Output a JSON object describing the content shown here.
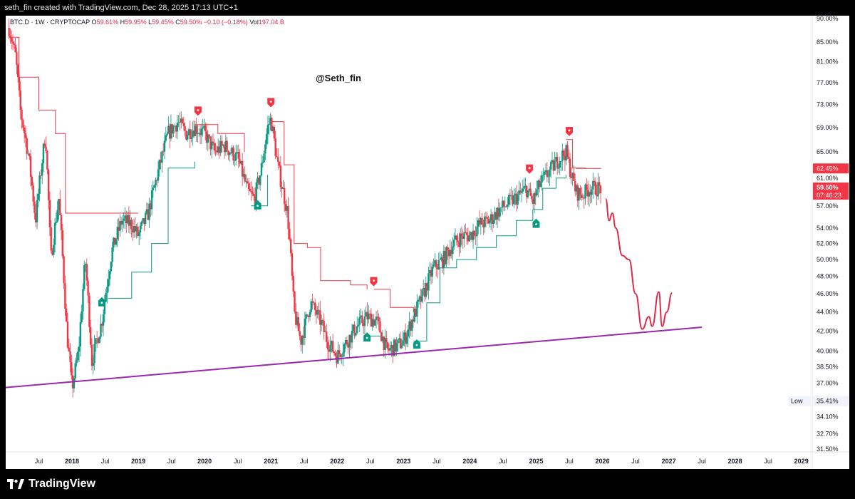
{
  "header": {
    "credit": "seth_fin created with TradingView.com, Dec 28, 2025 17:13 UTC+1"
  },
  "legend": {
    "symbol": "BTC.D · 1W · CRYPTOCAP",
    "o_label": "O",
    "o_value": "59.61%",
    "h_label": "H",
    "h_value": "59.95%",
    "l_label": "L",
    "l_value": "59.45%",
    "c_label": "C",
    "c_value": "59.50%",
    "change": "−0.10 (−0.18%)",
    "vol_label": "Vol",
    "vol_value": "197.04 B"
  },
  "watermark": "@Seth_fin",
  "brand": "TradingView",
  "colors": {
    "up": "#089981",
    "down": "#f23645",
    "trendline": "#9c27b0",
    "projection": "#e0294a",
    "stop_up": "#089981",
    "stop_down": "#f23645"
  },
  "chart_data": {
    "type": "candlestick",
    "title": "",
    "scale": "log",
    "ylim": [
      31.5,
      90.0
    ],
    "y_ticks": [
      "90.00%",
      "85.00%",
      "81.00%",
      "77.00%",
      "73.00%",
      "69.00%",
      "65.00%",
      "61.00%",
      "57.00%",
      "54.00%",
      "52.00%",
      "50.00%",
      "48.00%",
      "46.00%",
      "44.00%",
      "42.00%",
      "40.00%",
      "38.50%",
      "37.00%",
      "34.10%",
      "32.70%",
      "31.50%"
    ],
    "y_tick_values": [
      90,
      85,
      81,
      77,
      73,
      69,
      65,
      61,
      57,
      54,
      52,
      50,
      48,
      46,
      44,
      42,
      40,
      38.5,
      37,
      34.1,
      32.7,
      31.5
    ],
    "x_ticks": [
      "Jul",
      "2018",
      "Jul",
      "2019",
      "Jul",
      "2020",
      "Jul",
      "2021",
      "Jul",
      "2022",
      "Jul",
      "2023",
      "Jul",
      "2024",
      "Jul",
      "2025",
      "Jul",
      "2026",
      "Jul",
      "2027",
      "Jul",
      "2028",
      "Jul",
      "2029"
    ],
    "x_tick_times": [
      2017.5,
      2018.0,
      2018.5,
      2019.0,
      2019.5,
      2020.0,
      2020.5,
      2021.0,
      2021.5,
      2022.0,
      2022.5,
      2023.0,
      2023.5,
      2024.0,
      2024.5,
      2025.0,
      2025.5,
      2026.0,
      2026.5,
      2027.0,
      2027.5,
      2028.0,
      2028.5,
      2029.0
    ],
    "xlim": [
      2017.0,
      2029.1
    ],
    "price_anchors": [
      [
        2017.05,
        88.0
      ],
      [
        2017.15,
        82.0
      ],
      [
        2017.22,
        72.0
      ],
      [
        2017.35,
        64.0
      ],
      [
        2017.45,
        55.0
      ],
      [
        2017.6,
        68.0
      ],
      [
        2017.68,
        50.0
      ],
      [
        2017.8,
        58.0
      ],
      [
        2017.92,
        42.0
      ],
      [
        2018.0,
        36.5
      ],
      [
        2018.1,
        40.0
      ],
      [
        2018.2,
        50.0
      ],
      [
        2018.3,
        39.0
      ],
      [
        2018.45,
        43.0
      ],
      [
        2018.6,
        51.0
      ],
      [
        2018.75,
        55.0
      ],
      [
        2018.9,
        54.5
      ],
      [
        2019.0,
        53.0
      ],
      [
        2019.15,
        56.0
      ],
      [
        2019.3,
        62.0
      ],
      [
        2019.45,
        68.0
      ],
      [
        2019.6,
        70.0
      ],
      [
        2019.72,
        68.0
      ],
      [
        2019.85,
        69.0
      ],
      [
        2020.0,
        68.0
      ],
      [
        2020.15,
        65.0
      ],
      [
        2020.3,
        66.0
      ],
      [
        2020.5,
        64.0
      ],
      [
        2020.65,
        59.0
      ],
      [
        2020.75,
        58.0
      ],
      [
        2020.85,
        62.0
      ],
      [
        2020.95,
        69.0
      ],
      [
        2021.0,
        70.5
      ],
      [
        2021.1,
        63.0
      ],
      [
        2021.25,
        56.0
      ],
      [
        2021.35,
        44.0
      ],
      [
        2021.45,
        41.0
      ],
      [
        2021.6,
        45.0
      ],
      [
        2021.75,
        43.0
      ],
      [
        2021.85,
        41.0
      ],
      [
        2022.0,
        39.5
      ],
      [
        2022.15,
        41.0
      ],
      [
        2022.3,
        42.5
      ],
      [
        2022.45,
        43.5
      ],
      [
        2022.6,
        43.0
      ],
      [
        2022.75,
        40.0
      ],
      [
        2022.9,
        40.5
      ],
      [
        2023.0,
        41.0
      ],
      [
        2023.15,
        43.5
      ],
      [
        2023.3,
        46.0
      ],
      [
        2023.45,
        49.0
      ],
      [
        2023.6,
        50.0
      ],
      [
        2023.75,
        52.0
      ],
      [
        2023.9,
        53.0
      ],
      [
        2024.0,
        53.0
      ],
      [
        2024.15,
        54.5
      ],
      [
        2024.3,
        55.0
      ],
      [
        2024.45,
        56.5
      ],
      [
        2024.6,
        57.5
      ],
      [
        2024.75,
        58.5
      ],
      [
        2024.85,
        59.5
      ],
      [
        2024.95,
        57.5
      ],
      [
        2025.05,
        60.0
      ],
      [
        2025.2,
        62.0
      ],
      [
        2025.35,
        64.0
      ],
      [
        2025.45,
        65.0
      ],
      [
        2025.52,
        62.0
      ],
      [
        2025.6,
        59.0
      ],
      [
        2025.7,
        58.5
      ],
      [
        2025.8,
        59.5
      ],
      [
        2025.9,
        59.5
      ],
      [
        2025.99,
        59.5
      ]
    ],
    "supertrend_down": [
      [
        2017.05,
        86.0
      ],
      [
        2017.2,
        78.0
      ],
      [
        2017.5,
        72.0
      ],
      [
        2017.75,
        68.0
      ],
      [
        2017.9,
        56.0
      ],
      [
        2018.1,
        56.0
      ],
      [
        2018.3,
        56.0
      ],
      [
        2018.6,
        56.0
      ],
      [
        2019.0,
        56.0
      ]
    ],
    "supertrend_up_1": [
      [
        2018.55,
        45.5
      ],
      [
        2018.9,
        48.5
      ],
      [
        2019.2,
        52.0
      ],
      [
        2019.45,
        62.5
      ],
      [
        2019.85,
        63.5
      ]
    ],
    "supertrend_down_1": [
      [
        2019.85,
        69.5
      ],
      [
        2020.2,
        68.0
      ],
      [
        2020.6,
        65.0
      ]
    ],
    "supertrend_up_2": [
      [
        2020.7,
        57.0
      ],
      [
        2020.95,
        61.5
      ]
    ],
    "supertrend_down_2": [
      [
        2021.0,
        70.0
      ],
      [
        2021.2,
        63.0
      ],
      [
        2021.35,
        52.0
      ],
      [
        2021.55,
        51.5
      ],
      [
        2021.75,
        47.5
      ],
      [
        2022.2,
        47.0
      ],
      [
        2022.45,
        46.5
      ]
    ],
    "supertrend_up_3": [
      [
        2022.45,
        41.5
      ],
      [
        2022.65,
        41.5
      ]
    ],
    "supertrend_down_3": [
      [
        2022.55,
        46.5
      ],
      [
        2022.8,
        44.5
      ],
      [
        2023.15,
        44.0
      ]
    ],
    "supertrend_up_4": [
      [
        2023.15,
        41.0
      ],
      [
        2023.35,
        45.0
      ],
      [
        2023.55,
        49.0
      ],
      [
        2023.8,
        50.0
      ],
      [
        2024.1,
        51.5
      ],
      [
        2024.4,
        53.0
      ],
      [
        2024.7,
        55.0
      ],
      [
        2024.95,
        56.5
      ]
    ],
    "supertrend_up_5": [
      [
        2024.95,
        56.5
      ],
      [
        2025.1,
        59.5
      ],
      [
        2025.3,
        61.0
      ],
      [
        2025.45,
        61.5
      ]
    ],
    "supertrend_down_5": [
      [
        2025.45,
        67.0
      ],
      [
        2025.55,
        62.5
      ],
      [
        2025.75,
        62.5
      ]
    ],
    "trendline": [
      [
        2017.0,
        36.6
      ],
      [
        2027.5,
        42.4
      ]
    ],
    "projection": [
      [
        2026.05,
        58.0
      ],
      [
        2026.1,
        55.0
      ],
      [
        2026.15,
        56.0
      ],
      [
        2026.2,
        54.0
      ],
      [
        2026.3,
        50.5
      ],
      [
        2026.4,
        50.0
      ],
      [
        2026.5,
        46.0
      ],
      [
        2026.6,
        42.2
      ],
      [
        2026.7,
        43.5
      ],
      [
        2026.75,
        42.5
      ],
      [
        2026.85,
        46.2
      ],
      [
        2026.9,
        42.5
      ],
      [
        2026.97,
        44.0
      ],
      [
        2027.05,
        46.1
      ]
    ],
    "signals": [
      {
        "t": 2018.45,
        "price": 45.0,
        "dir": "buy",
        "label": "B"
      },
      {
        "t": 2019.9,
        "price": 72.0,
        "dir": "sell",
        "label": "S"
      },
      {
        "t": 2020.8,
        "price": 57.0,
        "dir": "buy",
        "label": "B"
      },
      {
        "t": 2021.0,
        "price": 73.5,
        "dir": "sell",
        "label": "S"
      },
      {
        "t": 2022.55,
        "price": 47.5,
        "dir": "sell",
        "label": "S"
      },
      {
        "t": 2022.45,
        "price": 41.3,
        "dir": "buy",
        "label": "B"
      },
      {
        "t": 2023.2,
        "price": 40.6,
        "dir": "buy",
        "label": "B"
      },
      {
        "t": 2024.9,
        "price": 62.5,
        "dir": "sell",
        "label": "S"
      },
      {
        "t": 2025.0,
        "price": 54.5,
        "dir": "buy",
        "label": "B"
      },
      {
        "t": 2025.5,
        "price": 68.5,
        "dir": "sell",
        "label": "S"
      }
    ],
    "price_tags": [
      {
        "label": "62.45%",
        "value": 62.45,
        "kind": "line"
      },
      {
        "label": "59.50%",
        "value": 59.5,
        "kind": "current",
        "countdown": "07:46:23"
      }
    ],
    "low_tag": {
      "label": "Low",
      "value_label": "35.41%",
      "value": 35.41
    }
  }
}
